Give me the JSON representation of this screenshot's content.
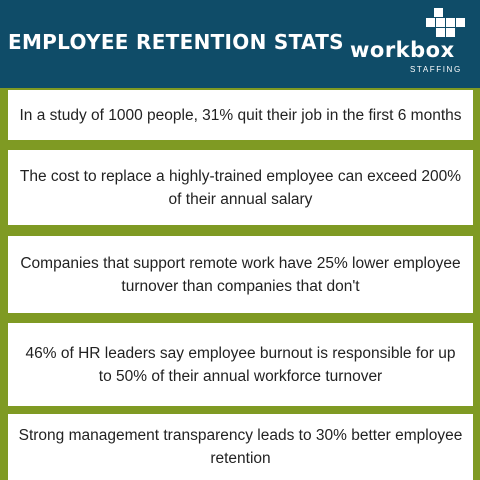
{
  "header": {
    "title": "EMPLOYEE RETENTION STATS",
    "logo_word": "workbox",
    "logo_sub": "STAFFING",
    "background": "#0f4c68"
  },
  "stats": [
    "In a study of 1000 people, 31% quit their job in the first 6 months",
    "The cost to replace a highly-trained employee can exceed 200% of their annual salary",
    "Companies that support remote work have 25% lower employee turnover than companies that don't",
    "46% of HR leaders say employee burnout is responsible for up to 50% of their annual workforce turnover",
    "Strong management transparency leads to 30% better employee retention"
  ],
  "colors": {
    "accent": "#7f9a23",
    "card": "#ffffff",
    "text": "#222222"
  }
}
